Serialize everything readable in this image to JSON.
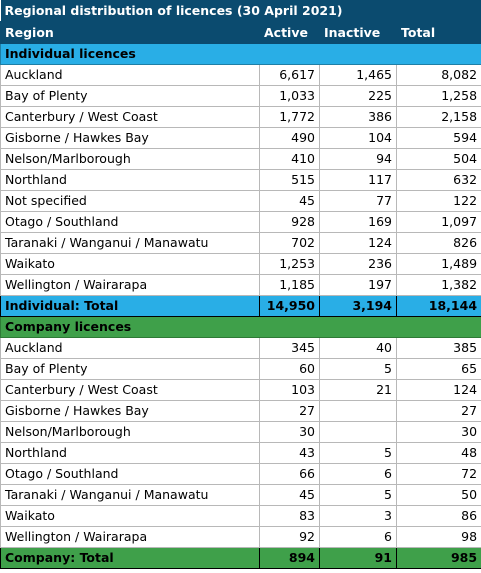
{
  "title": "Regional distribution of licences (30 April 2021)",
  "columns": {
    "region": "Region",
    "active": "Active",
    "inactive": "Inactive",
    "total": "Total"
  },
  "individual": {
    "heading": "Individual licences",
    "rows": [
      {
        "region": "Auckland",
        "active": "6,617",
        "inactive": "1,465",
        "total": "8,082"
      },
      {
        "region": "Bay of Plenty",
        "active": "1,033",
        "inactive": "225",
        "total": "1,258"
      },
      {
        "region": "Canterbury / West Coast",
        "active": "1,772",
        "inactive": "386",
        "total": "2,158"
      },
      {
        "region": "Gisborne / Hawkes Bay",
        "active": "490",
        "inactive": "104",
        "total": "594"
      },
      {
        "region": "Nelson/Marlborough",
        "active": "410",
        "inactive": "94",
        "total": "504"
      },
      {
        "region": "Northland",
        "active": "515",
        "inactive": "117",
        "total": "632"
      },
      {
        "region": "Not specified",
        "active": "45",
        "inactive": "77",
        "total": "122"
      },
      {
        "region": "Otago / Southland",
        "active": "928",
        "inactive": "169",
        "total": "1,097"
      },
      {
        "region": "Taranaki / Wanganui / Manawatu",
        "active": "702",
        "inactive": "124",
        "total": "826"
      },
      {
        "region": "Waikato",
        "active": "1,253",
        "inactive": "236",
        "total": "1,489"
      },
      {
        "region": "Wellington / Wairarapa",
        "active": "1,185",
        "inactive": "197",
        "total": "1,382"
      }
    ],
    "total": {
      "label": "Individual: Total",
      "active": "14,950",
      "inactive": "3,194",
      "total": "18,144"
    }
  },
  "company": {
    "heading": "Company licences",
    "rows": [
      {
        "region": "Auckland",
        "active": "345",
        "inactive": "40",
        "total": "385"
      },
      {
        "region": "Bay of Plenty",
        "active": "60",
        "inactive": "5",
        "total": "65"
      },
      {
        "region": "Canterbury / West Coast",
        "active": "103",
        "inactive": "21",
        "total": "124"
      },
      {
        "region": "Gisborne / Hawkes Bay",
        "active": "27",
        "inactive": "",
        "total": "27"
      },
      {
        "region": "Nelson/Marlborough",
        "active": "30",
        "inactive": "",
        "total": "30"
      },
      {
        "region": "Northland",
        "active": "43",
        "inactive": "5",
        "total": "48"
      },
      {
        "region": "Otago / Southland",
        "active": "66",
        "inactive": "6",
        "total": "72"
      },
      {
        "region": "Taranaki / Wanganui / Manawatu",
        "active": "45",
        "inactive": "5",
        "total": "50"
      },
      {
        "region": "Waikato",
        "active": "83",
        "inactive": "3",
        "total": "86"
      },
      {
        "region": "Wellington / Wairarapa",
        "active": "92",
        "inactive": "6",
        "total": "98"
      }
    ],
    "total": {
      "label": "Company: Total",
      "active": "894",
      "inactive": "91",
      "total": "985"
    }
  },
  "colors": {
    "header_bg": "#0b4b6f",
    "individual_bg": "#29aee6",
    "company_bg": "#3fa04a"
  }
}
